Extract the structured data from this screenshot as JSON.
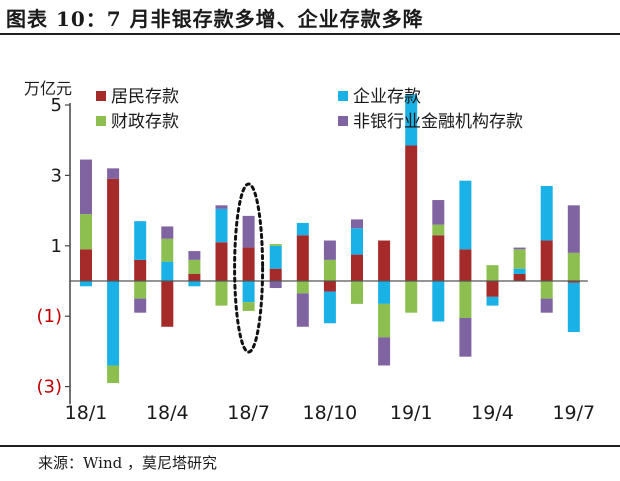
{
  "title": "图表 10：7 月非银存款多增、企业存款多降",
  "source": "来源：Wind ，莫尼塔研究",
  "chart_data": {
    "type": "bar",
    "stacked": true,
    "unit_label": "万亿元",
    "ylim": [
      -3.5,
      5
    ],
    "yticks": [
      {
        "value": 5,
        "label": "5",
        "color": "#1a1a1a"
      },
      {
        "value": 3,
        "label": "3",
        "color": "#1a1a1a"
      },
      {
        "value": 1,
        "label": "1",
        "color": "#1a1a1a"
      },
      {
        "value": -1,
        "label": "(1)",
        "color": "#c00000"
      },
      {
        "value": -3,
        "label": "(3)",
        "color": "#c00000"
      }
    ],
    "categories": [
      "2018-01",
      "2018-02",
      "2018-03",
      "2018-04",
      "2018-05",
      "2018-06",
      "2018-07",
      "2018-08",
      "2018-09",
      "2018-10",
      "2018-11",
      "2018-12",
      "2019-01",
      "2019-02",
      "2019-03",
      "2019-04",
      "2019-05",
      "2019-06",
      "2019-07"
    ],
    "xtick_labels": [
      {
        "index": 0,
        "label": "18/1"
      },
      {
        "index": 3,
        "label": "18/4"
      },
      {
        "index": 6,
        "label": "18/7"
      },
      {
        "index": 9,
        "label": "18/10"
      },
      {
        "index": 12,
        "label": "19/1"
      },
      {
        "index": 15,
        "label": "19/4"
      },
      {
        "index": 18,
        "label": "19/7"
      }
    ],
    "series": [
      {
        "name": "居民存款",
        "color": "#a52a2a",
        "values": [
          0.9,
          2.9,
          0.6,
          -1.3,
          0.2,
          1.1,
          0.95,
          0.35,
          1.3,
          -0.3,
          0.75,
          1.15,
          3.85,
          1.3,
          0.9,
          -0.45,
          0.2,
          1.15,
          -0.05
        ]
      },
      {
        "name": "企业存款",
        "color": "#1ab1e6",
        "values": [
          -0.15,
          -2.4,
          1.1,
          0.55,
          -0.15,
          0.95,
          -0.6,
          0.65,
          0.35,
          -0.9,
          0.75,
          -0.65,
          1.45,
          -1.15,
          1.95,
          -0.25,
          0.15,
          1.55,
          -1.4
        ]
      },
      {
        "name": "财政存款",
        "color": "#8cbf4f",
        "values": [
          1.0,
          -0.5,
          -0.5,
          0.65,
          0.4,
          -0.7,
          -0.25,
          0.05,
          -0.35,
          0.6,
          -0.65,
          -0.95,
          -0.9,
          0.3,
          -1.05,
          0.45,
          0.55,
          -0.5,
          0.8
        ]
      },
      {
        "name": "非银行业金融机构存款",
        "color": "#8064a2",
        "values": [
          1.55,
          0.3,
          -0.4,
          0.35,
          0.25,
          0.1,
          0.9,
          -0.2,
          -0.95,
          0.55,
          0.25,
          -0.8,
          0.0,
          0.7,
          -1.1,
          0.0,
          0.05,
          -0.4,
          1.35
        ]
      }
    ],
    "legend_placement": "top",
    "grid": false,
    "highlight": {
      "type": "dashed-ellipse",
      "category": "2018-07"
    }
  }
}
